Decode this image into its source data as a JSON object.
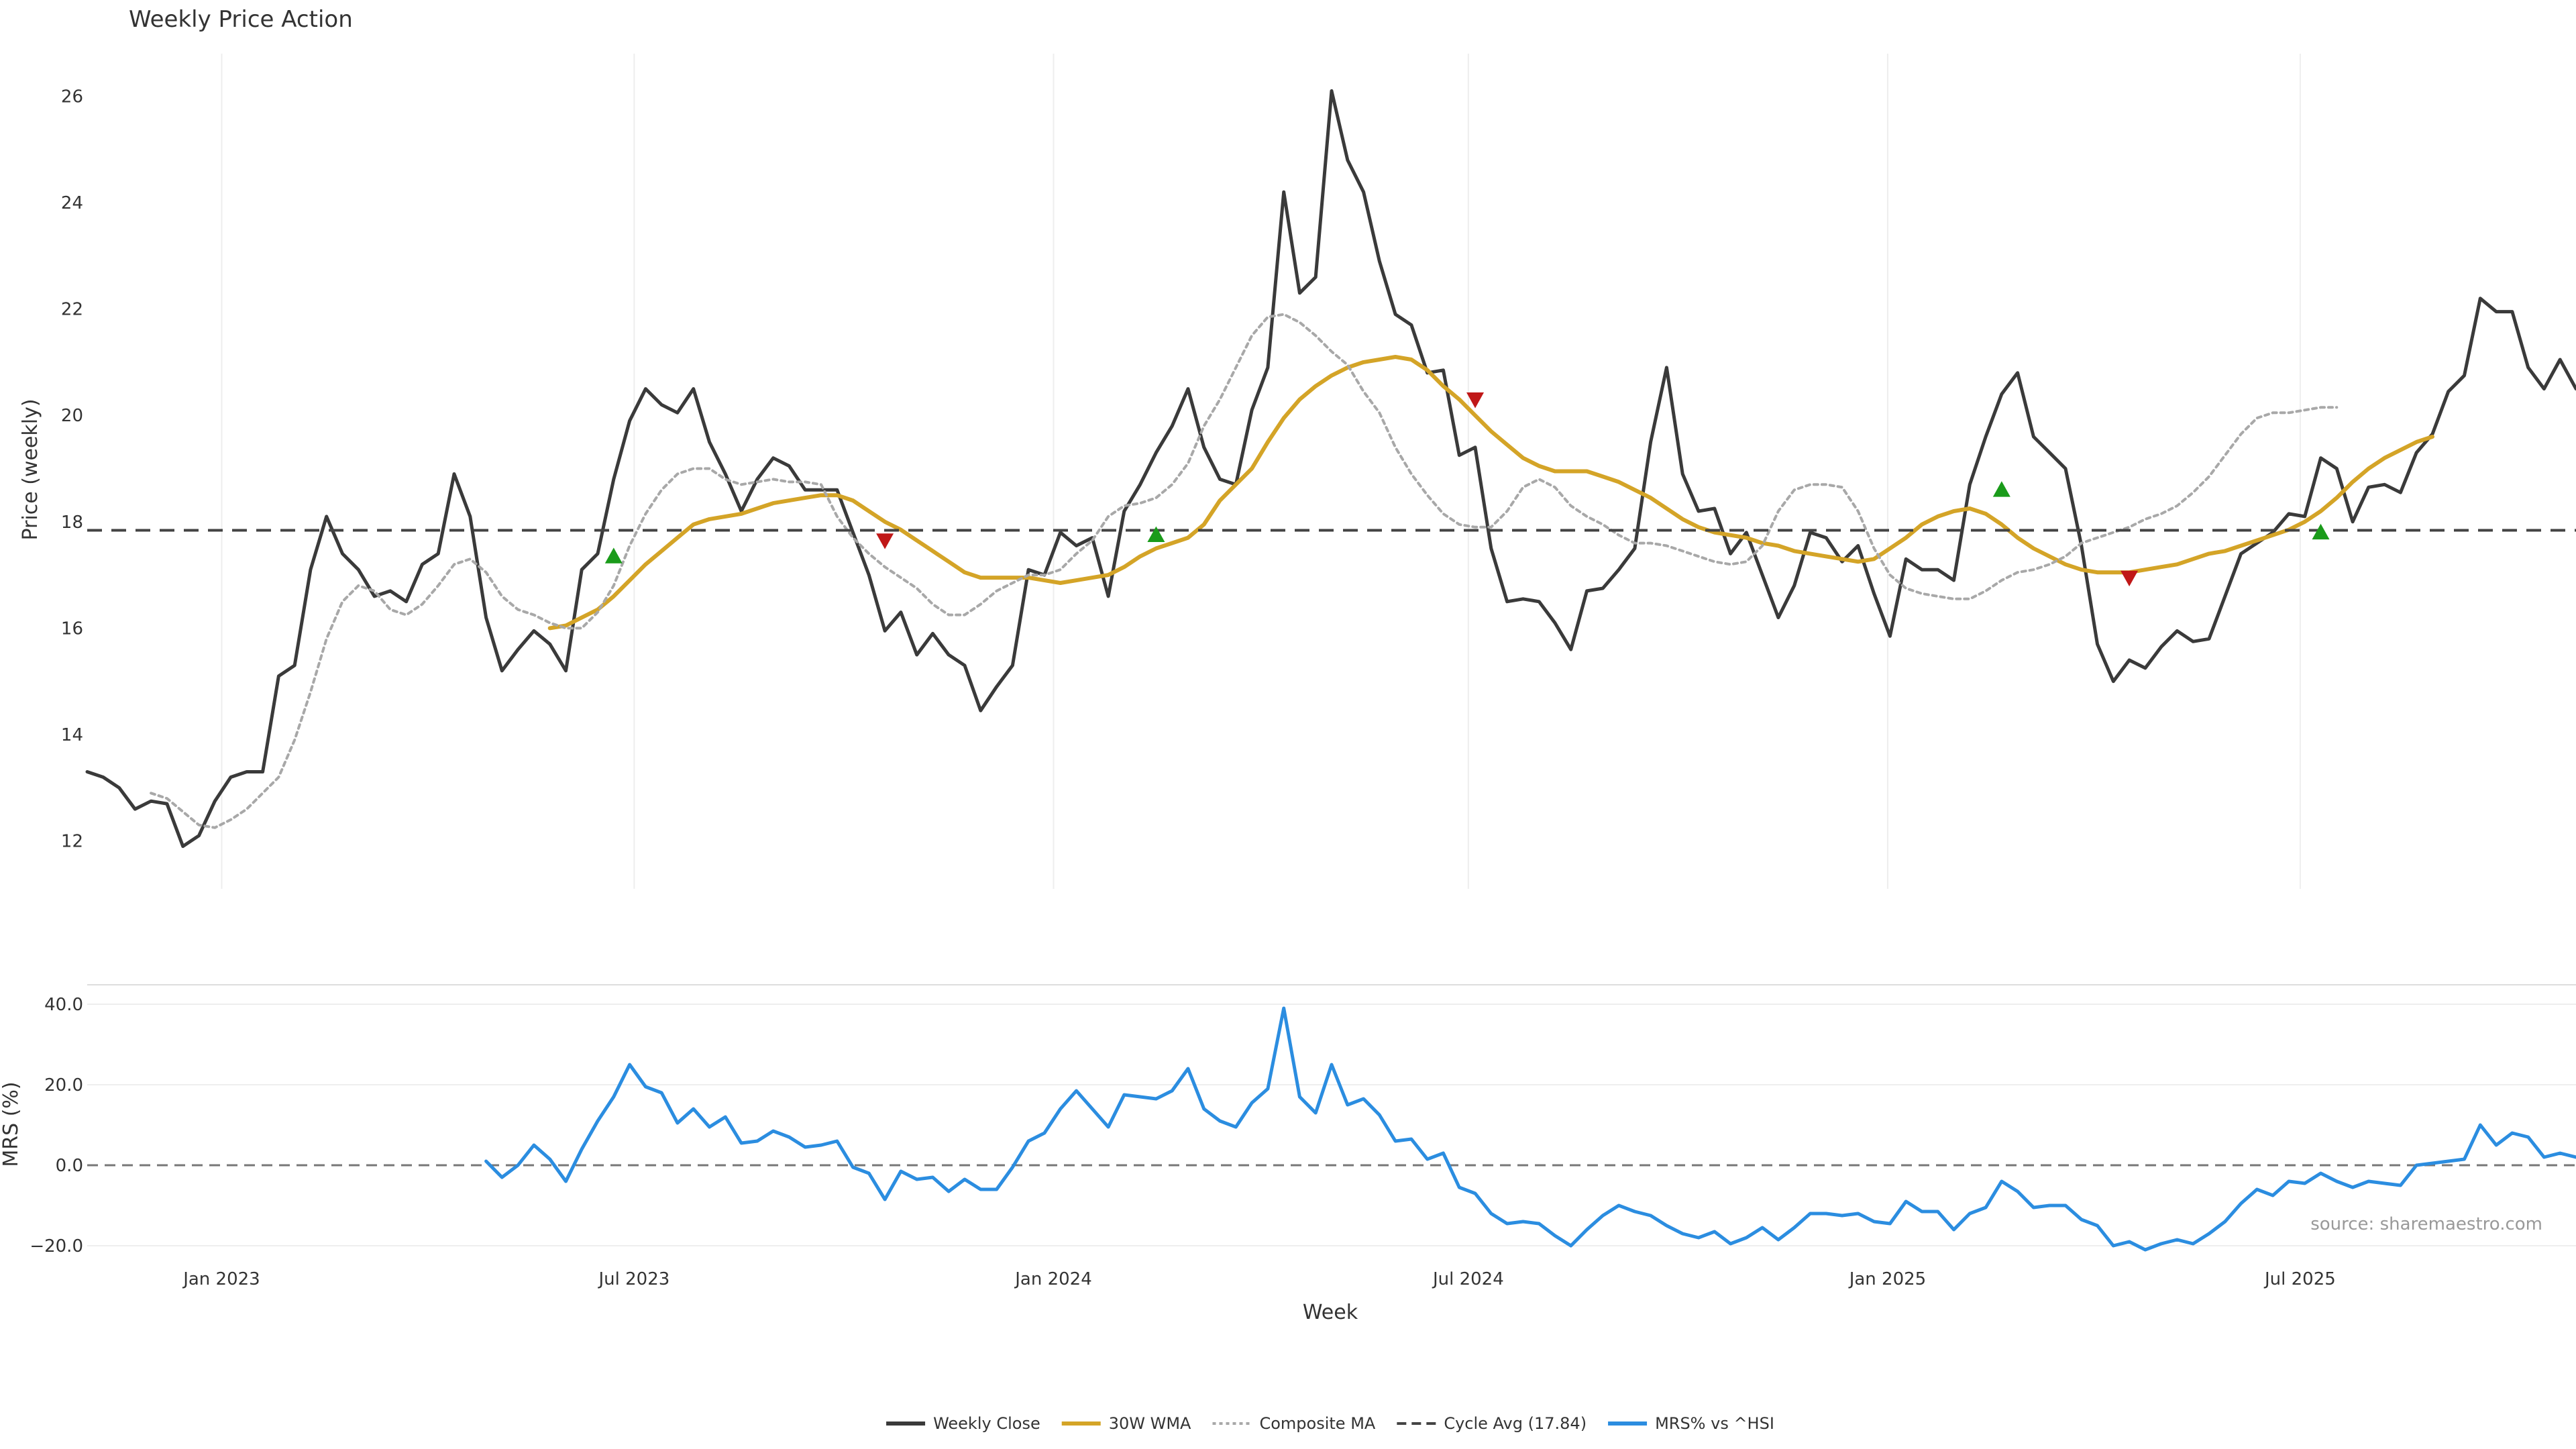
{
  "chart_data": [
    {
      "type": "line",
      "title": "Weekly Price Action",
      "xlabel": "",
      "ylabel": "Price (weekly)",
      "ylim": [
        11.1,
        26.8
      ],
      "yticks": [
        12,
        14,
        16,
        18,
        20,
        22,
        24,
        26
      ],
      "xlim": [
        "2022-11-03",
        "2025-10-30"
      ],
      "grid": "vertical",
      "x_weeks": {
        "start": "2022-11-03",
        "interval_days": 7
      },
      "xtick_labels": [
        "Jan 2023",
        "Jul 2023",
        "Jan 2024",
        "Jul 2024",
        "Jan 2025",
        "Jul 2025"
      ],
      "xtick_dates": [
        "2023-01-01",
        "2023-07-01",
        "2024-01-01",
        "2024-07-01",
        "2025-01-01",
        "2025-07-01"
      ],
      "series": [
        {
          "name": "Weekly Close",
          "color": "#3a3a3a",
          "style": "solid",
          "start_index": 0,
          "values": [
            13.3,
            13.2,
            13.0,
            12.6,
            12.75,
            12.7,
            11.9,
            12.1,
            12.75,
            13.2,
            13.3,
            13.3,
            15.1,
            15.3,
            17.1,
            18.1,
            17.4,
            17.1,
            16.6,
            16.7,
            16.5,
            17.2,
            17.4,
            18.9,
            18.1,
            16.2,
            15.2,
            15.6,
            15.95,
            15.7,
            15.2,
            17.1,
            17.4,
            18.8,
            19.9,
            20.5,
            20.2,
            20.05,
            20.5,
            19.5,
            18.9,
            18.2,
            18.8,
            19.2,
            19.05,
            18.6,
            18.6,
            18.6,
            17.8,
            17.0,
            15.95,
            16.3,
            15.5,
            15.9,
            15.5,
            15.3,
            14.45,
            14.9,
            15.3,
            17.1,
            17.0,
            17.8,
            17.55,
            17.7,
            16.6,
            18.2,
            18.7,
            19.3,
            19.8,
            20.5,
            19.4,
            18.8,
            18.7,
            20.1,
            20.9,
            24.2,
            22.3,
            22.6,
            26.1,
            24.8,
            24.2,
            22.9,
            21.9,
            21.7,
            20.8,
            20.85,
            19.25,
            19.4,
            17.5,
            16.5,
            16.55,
            16.5,
            16.1,
            15.6,
            16.7,
            16.75,
            17.1,
            17.5,
            19.5,
            20.9,
            18.9,
            18.2,
            18.25,
            17.4,
            17.8,
            17.0,
            16.2,
            16.8,
            17.8,
            17.7,
            17.25,
            17.55,
            16.65,
            15.85,
            17.3,
            17.1,
            17.1,
            16.9,
            18.7,
            19.6,
            20.4,
            20.8,
            19.6,
            19.3,
            19.0,
            17.55,
            15.7,
            15.0,
            15.4,
            15.25,
            15.65,
            15.95,
            15.75,
            15.8,
            16.6,
            17.4,
            17.6,
            17.8,
            18.15,
            18.1,
            19.2,
            19.0,
            18.0,
            18.65,
            18.7,
            18.55,
            19.3,
            19.65,
            20.45,
            20.75,
            22.2,
            21.95,
            21.95,
            20.9,
            20.5,
            21.05,
            20.5
          ]
        },
        {
          "name": "30W WMA",
          "color": "#d4a427",
          "style": "solid",
          "start_index": 29,
          "values": [
            16.0,
            16.05,
            16.2,
            16.35,
            16.6,
            16.9,
            17.2,
            17.45,
            17.7,
            17.95,
            18.05,
            18.1,
            18.15,
            18.25,
            18.35,
            18.4,
            18.45,
            18.5,
            18.5,
            18.4,
            18.2,
            18.0,
            17.85,
            17.65,
            17.45,
            17.25,
            17.05,
            16.95,
            16.95,
            16.95,
            16.95,
            16.9,
            16.85,
            16.9,
            16.95,
            17.0,
            17.15,
            17.35,
            17.5,
            17.6,
            17.7,
            17.95,
            18.4,
            18.7,
            19.0,
            19.5,
            19.95,
            20.3,
            20.55,
            20.75,
            20.9,
            21.0,
            21.05,
            21.1,
            21.05,
            20.85,
            20.55,
            20.3,
            20.0,
            19.7,
            19.45,
            19.2,
            19.05,
            18.95,
            18.95,
            18.95,
            18.85,
            18.75,
            18.6,
            18.45,
            18.25,
            18.05,
            17.9,
            17.8,
            17.75,
            17.7,
            17.6,
            17.55,
            17.45,
            17.4,
            17.35,
            17.3,
            17.25,
            17.3,
            17.5,
            17.7,
            17.95,
            18.1,
            18.2,
            18.25,
            18.15,
            17.95,
            17.7,
            17.5,
            17.35,
            17.2,
            17.1,
            17.05,
            17.05,
            17.05,
            17.1,
            17.15,
            17.2,
            17.3,
            17.4,
            17.45,
            17.55,
            17.65,
            17.75,
            17.85,
            18.0,
            18.2,
            18.45,
            18.75,
            19.0,
            19.2,
            19.35,
            19.5,
            19.6
          ]
        },
        {
          "name": "Composite MA",
          "color": "#a8a8a8",
          "style": "dotted",
          "start_index": 4,
          "values": [
            12.9,
            12.8,
            12.55,
            12.3,
            12.25,
            12.4,
            12.6,
            12.9,
            13.2,
            13.9,
            14.8,
            15.8,
            16.5,
            16.8,
            16.7,
            16.35,
            16.25,
            16.45,
            16.8,
            17.2,
            17.3,
            17.05,
            16.6,
            16.35,
            16.25,
            16.1,
            16.0,
            16.0,
            16.3,
            16.8,
            17.55,
            18.15,
            18.6,
            18.9,
            19.0,
            19.0,
            18.8,
            18.7,
            18.75,
            18.8,
            18.75,
            18.75,
            18.7,
            18.1,
            17.7,
            17.4,
            17.15,
            16.95,
            16.75,
            16.45,
            16.25,
            16.25,
            16.45,
            16.7,
            16.85,
            17.0,
            17.0,
            17.1,
            17.4,
            17.65,
            18.1,
            18.3,
            18.35,
            18.45,
            18.7,
            19.1,
            19.8,
            20.3,
            20.9,
            21.5,
            21.85,
            21.9,
            21.75,
            21.5,
            21.2,
            20.95,
            20.45,
            20.05,
            19.4,
            18.9,
            18.5,
            18.15,
            17.95,
            17.9,
            17.9,
            18.2,
            18.65,
            18.8,
            18.65,
            18.3,
            18.1,
            17.95,
            17.75,
            17.6,
            17.6,
            17.55,
            17.45,
            17.35,
            17.25,
            17.2,
            17.25,
            17.55,
            18.2,
            18.6,
            18.7,
            18.7,
            18.65,
            18.2,
            17.5,
            17.0,
            16.75,
            16.65,
            16.6,
            16.55,
            16.55,
            16.7,
            16.9,
            17.05,
            17.1,
            17.2,
            17.35,
            17.6,
            17.7,
            17.8,
            17.9,
            18.05,
            18.15,
            18.3,
            18.55,
            18.85,
            19.25,
            19.65,
            19.95,
            20.05,
            20.05,
            20.1,
            20.15,
            20.15
          ]
        },
        {
          "name": "Cycle Avg (17.84)",
          "color": "#444444",
          "style": "dashed",
          "value": 17.84
        }
      ],
      "markers": [
        {
          "type": "up",
          "color": "#1a9b1a",
          "index": 33,
          "y": 17.35
        },
        {
          "type": "down",
          "color": "#c01818",
          "index": 50,
          "y": 17.65
        },
        {
          "type": "up",
          "color": "#1a9b1a",
          "index": 67,
          "y": 17.75
        },
        {
          "type": "down",
          "color": "#c01818",
          "index": 87,
          "y": 20.3
        },
        {
          "type": "up",
          "color": "#1a9b1a",
          "index": 120,
          "y": 18.6
        },
        {
          "type": "down",
          "color": "#c01818",
          "index": 128,
          "y": 16.95
        },
        {
          "type": "up",
          "color": "#1a9b1a",
          "index": 140,
          "y": 17.8
        }
      ]
    },
    {
      "type": "line",
      "title": "",
      "xlabel": "Week",
      "ylabel": "MRS (%)",
      "ylim": [
        -20.5,
        42
      ],
      "yticks": [
        -20,
        0,
        20,
        40
      ],
      "ytick_labels": [
        "−20.0",
        "0.0",
        "20.0",
        "40.0"
      ],
      "zero_line": {
        "value": 0,
        "style": "dashed",
        "color": "#777777"
      },
      "series": [
        {
          "name": "MRS% vs ^HSI",
          "color": "#2b8de0",
          "start_index": 25,
          "values": [
            1,
            -3,
            0,
            5,
            1.5,
            -4,
            4,
            11,
            17,
            25,
            19.5,
            18,
            10.5,
            14,
            9.5,
            12,
            5.5,
            6,
            8.5,
            7,
            4.5,
            5,
            6,
            -0.5,
            -2,
            -8.5,
            -1.5,
            -3.5,
            -3,
            -6.5,
            -3.5,
            -6,
            -6,
            -0.5,
            6,
            8,
            14,
            18.5,
            14,
            9.5,
            17.5,
            17,
            16.5,
            18.5,
            24,
            14,
            11,
            9.5,
            15.5,
            19,
            39,
            17,
            13,
            25,
            15,
            16.5,
            12.5,
            6,
            6.5,
            1.5,
            3,
            -5.5,
            -7,
            -12,
            -14.5,
            -14,
            -14.5,
            -17.5,
            -20,
            -16,
            -12.5,
            -10,
            -11.5,
            -12.5,
            -15,
            -17,
            -18,
            -16.5,
            -19.5,
            -18,
            -15.5,
            -18.5,
            -15.5,
            -12,
            -12,
            -12.5,
            -12,
            -14,
            -14.5,
            -9,
            -11.5,
            -11.5,
            -16,
            -12,
            -10.5,
            -4,
            -6.5,
            -10.5,
            -10,
            -10,
            -13.5,
            -15,
            -20,
            -19,
            -21,
            -19.5,
            -18.5,
            -19.5,
            -17,
            -14,
            -9.5,
            -6,
            -7.5,
            -4,
            -4.5,
            -2,
            -4,
            -5.5,
            -4,
            -4.5,
            -5,
            0,
            0.5,
            1,
            1.5,
            10,
            5,
            8,
            7,
            2,
            3,
            2
          ]
        }
      ],
      "annotation": "source: sharemaestro.com"
    }
  ],
  "legend": {
    "placement": "bottom-center",
    "items": [
      {
        "label": "Weekly Close",
        "color": "#3a3a3a",
        "style": "solid"
      },
      {
        "label": "30W WMA",
        "color": "#d4a427",
        "style": "solid"
      },
      {
        "label": "Composite MA",
        "color": "#a8a8a8",
        "style": "dotted"
      },
      {
        "label": "Cycle Avg (17.84)",
        "color": "#444444",
        "style": "dashed"
      },
      {
        "label": "MRS% vs ^HSI",
        "color": "#2b8de0",
        "style": "solid"
      }
    ]
  }
}
